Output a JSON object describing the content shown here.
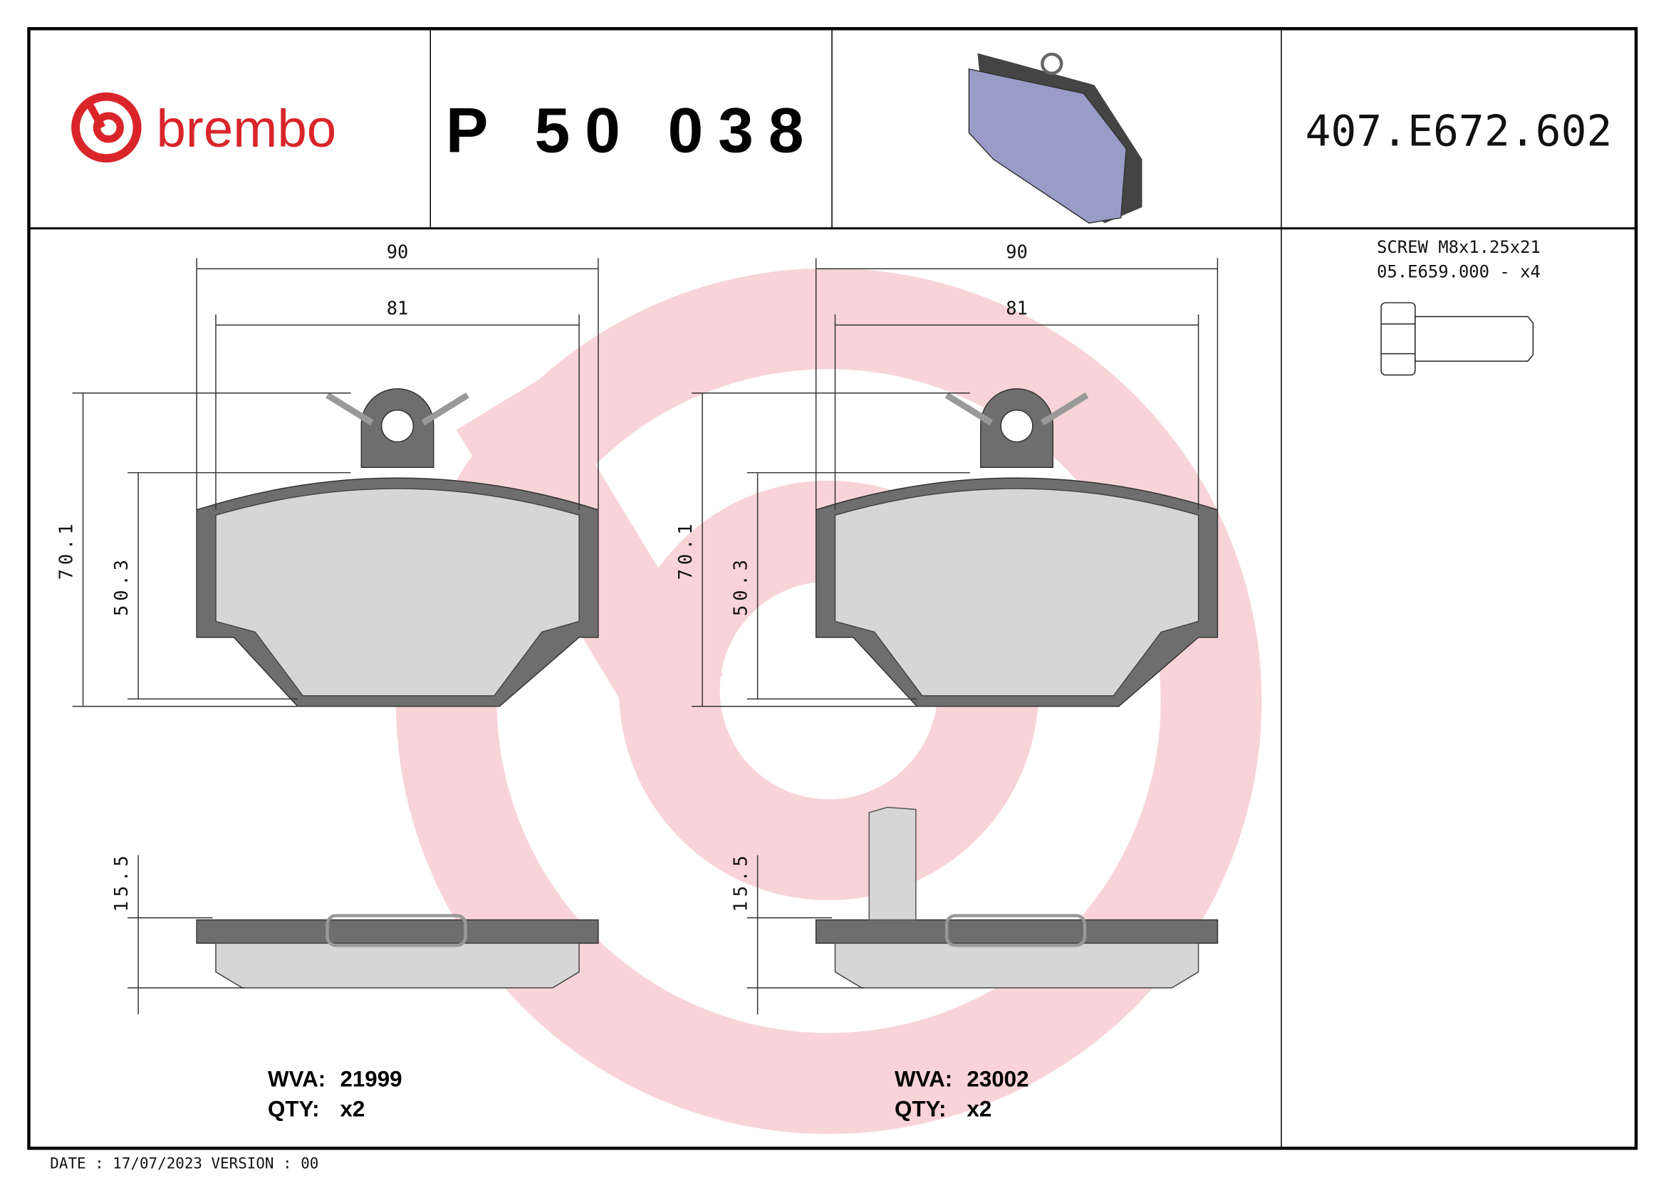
{
  "header": {
    "brand": "brembo",
    "part_number": "P 50 038",
    "oe_reference": "407.E672.602"
  },
  "accessory": {
    "line1": "SCREW M8x1.25x21",
    "line2": "05.E659.000 - x4"
  },
  "pads": [
    {
      "width_outer": "90",
      "width_inner": "81",
      "height_total": "70.1",
      "height_pad": "50.3",
      "thickness": "15.5",
      "wva_label": "WVA:",
      "wva": "21999",
      "qty_label": "QTY:",
      "qty": "x2"
    },
    {
      "width_outer": "90",
      "width_inner": "81",
      "height_total": "70.1",
      "height_pad": "50.3",
      "thickness": "15.5",
      "wva_label": "WVA:",
      "wva": "23002",
      "qty_label": "QTY:",
      "qty": "x2"
    }
  ],
  "footer": {
    "text": "DATE : 17/07/2023 VERSION : 00"
  },
  "colors": {
    "brand_red": "#d9252a",
    "watermark": "#f2b8bc",
    "backplate": "#6e6e6e",
    "friction": "#d6d6d6",
    "render_pad": "#9a9cc8"
  }
}
